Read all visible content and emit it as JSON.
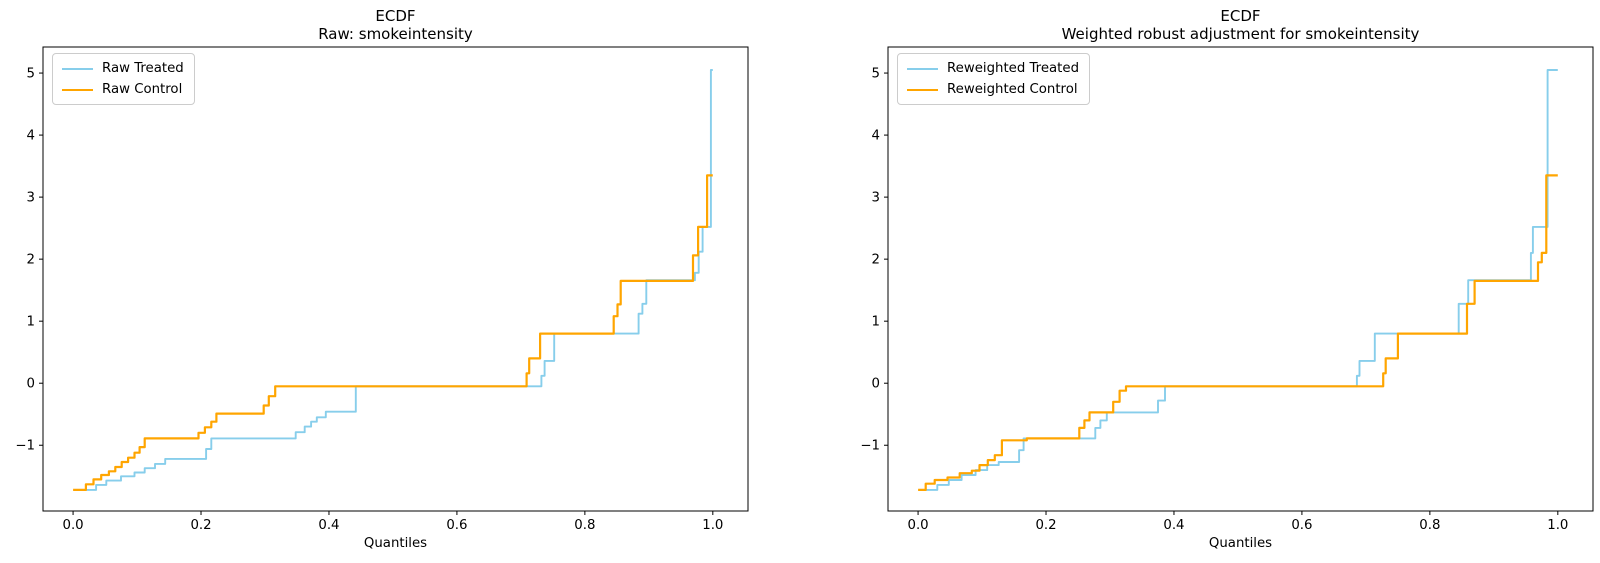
{
  "figure": {
    "background": "#ffffff"
  },
  "colors": {
    "treated_line": "#87CEEB",
    "control_line": "#FFA500",
    "axis": "#000000",
    "legend_border": "#cccccc"
  },
  "chart_data": [
    {
      "type": "line",
      "step": true,
      "title": "ECDF",
      "subtitle": "Raw: smokeintensity",
      "xlabel": "Quantiles",
      "ylabel": "",
      "xlim": [
        -0.047,
        1.055
      ],
      "ylim": [
        -2.06,
        5.42
      ],
      "xticks": [
        0.0,
        0.2,
        0.4,
        0.6,
        0.8,
        1.0
      ],
      "yticks": [
        -1,
        0,
        1,
        2,
        3,
        4,
        5
      ],
      "grid": false,
      "legend_position": "upper left",
      "series": [
        {
          "name": "Raw Treated",
          "color": "#87CEEB",
          "points": [
            [
              0.018,
              -1.72
            ],
            [
              0.036,
              -1.72
            ],
            [
              0.036,
              -1.64
            ],
            [
              0.052,
              -1.64
            ],
            [
              0.052,
              -1.57
            ],
            [
              0.075,
              -1.57
            ],
            [
              0.075,
              -1.5
            ],
            [
              0.096,
              -1.5
            ],
            [
              0.096,
              -1.44
            ],
            [
              0.112,
              -1.44
            ],
            [
              0.112,
              -1.37
            ],
            [
              0.128,
              -1.37
            ],
            [
              0.128,
              -1.3
            ],
            [
              0.144,
              -1.3
            ],
            [
              0.144,
              -1.22
            ],
            [
              0.208,
              -1.22
            ],
            [
              0.208,
              -1.06
            ],
            [
              0.216,
              -1.06
            ],
            [
              0.216,
              -0.89
            ],
            [
              0.348,
              -0.89
            ],
            [
              0.348,
              -0.79
            ],
            [
              0.362,
              -0.79
            ],
            [
              0.362,
              -0.7
            ],
            [
              0.372,
              -0.7
            ],
            [
              0.372,
              -0.62
            ],
            [
              0.381,
              -0.62
            ],
            [
              0.381,
              -0.55
            ],
            [
              0.395,
              -0.55
            ],
            [
              0.395,
              -0.46
            ],
            [
              0.442,
              -0.46
            ],
            [
              0.442,
              -0.05
            ],
            [
              0.732,
              -0.05
            ],
            [
              0.732,
              0.12
            ],
            [
              0.737,
              0.12
            ],
            [
              0.737,
              0.36
            ],
            [
              0.752,
              0.36
            ],
            [
              0.752,
              0.8
            ],
            [
              0.884,
              0.8
            ],
            [
              0.884,
              1.12
            ],
            [
              0.89,
              1.12
            ],
            [
              0.89,
              1.28
            ],
            [
              0.896,
              1.28
            ],
            [
              0.896,
              1.66
            ],
            [
              0.972,
              1.66
            ],
            [
              0.972,
              1.78
            ],
            [
              0.978,
              1.78
            ],
            [
              0.978,
              2.12
            ],
            [
              0.984,
              2.12
            ],
            [
              0.984,
              2.52
            ],
            [
              0.997,
              2.52
            ],
            [
              0.997,
              5.05
            ],
            [
              1.0,
              5.05
            ]
          ]
        },
        {
          "name": "Raw Control",
          "color": "#FFA500",
          "points": [
            [
              0.0,
              -1.72
            ],
            [
              0.02,
              -1.72
            ],
            [
              0.02,
              -1.63
            ],
            [
              0.032,
              -1.63
            ],
            [
              0.032,
              -1.55
            ],
            [
              0.044,
              -1.55
            ],
            [
              0.044,
              -1.48
            ],
            [
              0.056,
              -1.48
            ],
            [
              0.056,
              -1.42
            ],
            [
              0.066,
              -1.42
            ],
            [
              0.066,
              -1.35
            ],
            [
              0.076,
              -1.35
            ],
            [
              0.076,
              -1.27
            ],
            [
              0.086,
              -1.27
            ],
            [
              0.086,
              -1.2
            ],
            [
              0.096,
              -1.2
            ],
            [
              0.096,
              -1.12
            ],
            [
              0.104,
              -1.12
            ],
            [
              0.104,
              -1.03
            ],
            [
              0.112,
              -1.03
            ],
            [
              0.112,
              -0.89
            ],
            [
              0.196,
              -0.89
            ],
            [
              0.196,
              -0.8
            ],
            [
              0.206,
              -0.8
            ],
            [
              0.206,
              -0.71
            ],
            [
              0.216,
              -0.71
            ],
            [
              0.216,
              -0.62
            ],
            [
              0.224,
              -0.62
            ],
            [
              0.224,
              -0.49
            ],
            [
              0.298,
              -0.49
            ],
            [
              0.298,
              -0.36
            ],
            [
              0.306,
              -0.36
            ],
            [
              0.306,
              -0.21
            ],
            [
              0.316,
              -0.21
            ],
            [
              0.316,
              -0.05
            ],
            [
              0.709,
              -0.05
            ],
            [
              0.709,
              0.16
            ],
            [
              0.713,
              0.16
            ],
            [
              0.713,
              0.4
            ],
            [
              0.73,
              0.4
            ],
            [
              0.73,
              0.8
            ],
            [
              0.845,
              0.8
            ],
            [
              0.845,
              1.08
            ],
            [
              0.851,
              1.08
            ],
            [
              0.851,
              1.27
            ],
            [
              0.856,
              1.27
            ],
            [
              0.856,
              1.65
            ],
            [
              0.969,
              1.65
            ],
            [
              0.969,
              2.06
            ],
            [
              0.977,
              2.06
            ],
            [
              0.977,
              2.52
            ],
            [
              0.991,
              2.52
            ],
            [
              0.991,
              3.35
            ],
            [
              1.0,
              3.35
            ]
          ]
        }
      ]
    },
    {
      "type": "line",
      "step": true,
      "title": "ECDF",
      "subtitle": "Weighted robust adjustment for smokeintensity",
      "xlabel": "Quantiles",
      "ylabel": "",
      "xlim": [
        -0.047,
        1.055
      ],
      "ylim": [
        -2.06,
        5.42
      ],
      "xticks": [
        0.0,
        0.2,
        0.4,
        0.6,
        0.8,
        1.0
      ],
      "yticks": [
        -1,
        0,
        1,
        2,
        3,
        4,
        5
      ],
      "grid": false,
      "legend_position": "upper left",
      "series": [
        {
          "name": "Reweighted Treated",
          "color": "#87CEEB",
          "points": [
            [
              0.006,
              -1.72
            ],
            [
              0.03,
              -1.72
            ],
            [
              0.03,
              -1.64
            ],
            [
              0.048,
              -1.64
            ],
            [
              0.048,
              -1.56
            ],
            [
              0.068,
              -1.56
            ],
            [
              0.068,
              -1.48
            ],
            [
              0.09,
              -1.48
            ],
            [
              0.09,
              -1.4
            ],
            [
              0.108,
              -1.4
            ],
            [
              0.108,
              -1.32
            ],
            [
              0.126,
              -1.32
            ],
            [
              0.126,
              -1.27
            ],
            [
              0.158,
              -1.27
            ],
            [
              0.158,
              -1.08
            ],
            [
              0.165,
              -1.08
            ],
            [
              0.165,
              -0.89
            ],
            [
              0.277,
              -0.89
            ],
            [
              0.277,
              -0.72
            ],
            [
              0.285,
              -0.72
            ],
            [
              0.285,
              -0.6
            ],
            [
              0.295,
              -0.6
            ],
            [
              0.295,
              -0.47
            ],
            [
              0.375,
              -0.47
            ],
            [
              0.375,
              -0.28
            ],
            [
              0.386,
              -0.28
            ],
            [
              0.386,
              -0.05
            ],
            [
              0.686,
              -0.05
            ],
            [
              0.686,
              0.12
            ],
            [
              0.69,
              0.12
            ],
            [
              0.69,
              0.36
            ],
            [
              0.714,
              0.36
            ],
            [
              0.714,
              0.8
            ],
            [
              0.845,
              0.8
            ],
            [
              0.845,
              1.28
            ],
            [
              0.86,
              1.28
            ],
            [
              0.86,
              1.66
            ],
            [
              0.958,
              1.66
            ],
            [
              0.958,
              2.1
            ],
            [
              0.961,
              2.1
            ],
            [
              0.961,
              2.52
            ],
            [
              0.984,
              2.52
            ],
            [
              0.984,
              5.05
            ],
            [
              1.0,
              5.05
            ]
          ]
        },
        {
          "name": "Reweighted Control",
          "color": "#FFA500",
          "points": [
            [
              0.0,
              -1.72
            ],
            [
              0.012,
              -1.72
            ],
            [
              0.012,
              -1.62
            ],
            [
              0.026,
              -1.62
            ],
            [
              0.026,
              -1.56
            ],
            [
              0.046,
              -1.56
            ],
            [
              0.046,
              -1.52
            ],
            [
              0.065,
              -1.52
            ],
            [
              0.065,
              -1.45
            ],
            [
              0.084,
              -1.45
            ],
            [
              0.084,
              -1.41
            ],
            [
              0.096,
              -1.41
            ],
            [
              0.096,
              -1.32
            ],
            [
              0.109,
              -1.32
            ],
            [
              0.109,
              -1.24
            ],
            [
              0.12,
              -1.24
            ],
            [
              0.12,
              -1.16
            ],
            [
              0.131,
              -1.16
            ],
            [
              0.131,
              -0.92
            ],
            [
              0.17,
              -0.92
            ],
            [
              0.17,
              -0.89
            ],
            [
              0.252,
              -0.89
            ],
            [
              0.252,
              -0.72
            ],
            [
              0.26,
              -0.72
            ],
            [
              0.26,
              -0.6
            ],
            [
              0.268,
              -0.6
            ],
            [
              0.268,
              -0.47
            ],
            [
              0.305,
              -0.47
            ],
            [
              0.305,
              -0.3
            ],
            [
              0.315,
              -0.3
            ],
            [
              0.315,
              -0.12
            ],
            [
              0.325,
              -0.12
            ],
            [
              0.325,
              -0.05
            ],
            [
              0.727,
              -0.05
            ],
            [
              0.727,
              0.16
            ],
            [
              0.731,
              0.16
            ],
            [
              0.731,
              0.4
            ],
            [
              0.75,
              0.4
            ],
            [
              0.75,
              0.8
            ],
            [
              0.858,
              0.8
            ],
            [
              0.858,
              1.28
            ],
            [
              0.87,
              1.28
            ],
            [
              0.87,
              1.65
            ],
            [
              0.969,
              1.65
            ],
            [
              0.969,
              1.95
            ],
            [
              0.975,
              1.95
            ],
            [
              0.975,
              2.1
            ],
            [
              0.982,
              2.1
            ],
            [
              0.982,
              3.35
            ],
            [
              1.0,
              3.35
            ]
          ]
        }
      ]
    }
  ]
}
